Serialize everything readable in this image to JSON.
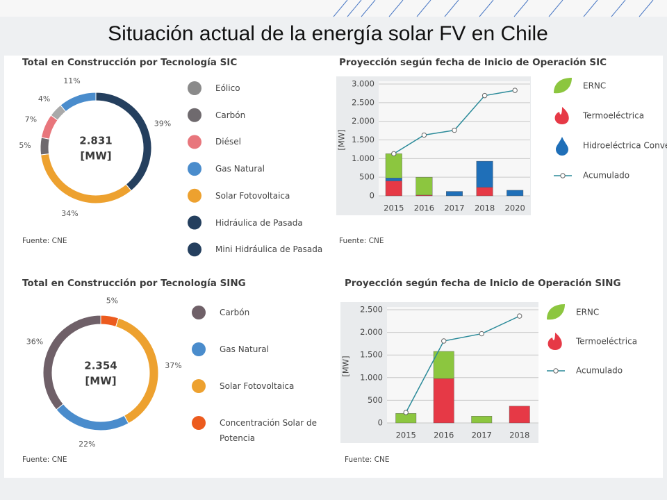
{
  "title": "Situación actual de la energía solar FV en Chile",
  "chart_data": [
    {
      "type": "donut",
      "title": "Total en Construcción por Tecnología SIC",
      "center_label": [
        "2.831",
        "[MW]"
      ],
      "values": [
        39,
        34,
        5,
        7,
        4,
        11
      ],
      "value_labels": [
        "39%",
        "34%",
        "5%",
        "7%",
        "4%",
        "11%"
      ],
      "colors": [
        "#243f5e",
        "#eda12f",
        "#6f6a6e",
        "#e8767c",
        "#a9a9a9",
        "#4a8ccc"
      ],
      "legend": [
        "Eólico",
        "Carbón",
        "Diésel",
        "Gas Natural",
        "Solar Fotovoltaica",
        "Hidráulica de Pasada",
        "Mini Hidráulica de Pasada"
      ],
      "legend_colors": [
        "#8a8a8a",
        "#6f6a6e",
        "#e8767c",
        "#4a8ccc",
        "#eda12f",
        "#243f5e",
        "#243f5e"
      ],
      "source": "Fuente: CNE"
    },
    {
      "type": "stacked_bar",
      "title": "Proyección según fecha de Inicio de Operación SIC",
      "y_label": "[MW]",
      "categories": [
        "2015",
        "2016",
        "2017",
        "2018",
        "2020"
      ],
      "series": [
        {
          "name": "ERNC",
          "color": "#8cc63f",
          "values": [
            650,
            480,
            0,
            0,
            0
          ]
        },
        {
          "name": "Termoeléctrica",
          "color": "#e63946",
          "values": [
            400,
            20,
            0,
            230,
            0
          ]
        },
        {
          "name": "Hidroeléctrica Conve",
          "color": "#1f6fb8",
          "values": [
            80,
            0,
            120,
            700,
            150
          ]
        }
      ],
      "line": {
        "name": "Acumulado",
        "color": "#2a8a99",
        "values": [
          1130,
          1630,
          1760,
          2690,
          2830
        ]
      },
      "ylim": [
        0,
        3000
      ],
      "yticks": [
        0,
        500,
        {
          "value": 1000,
          "label": "1.000"
        },
        {
          "value": 1500,
          "label": "1.500"
        },
        {
          "value": 2000,
          "label": "2.000"
        },
        {
          "value": 2500,
          "label": "2.500"
        },
        {
          "value": 3000,
          "label": "3.000"
        }
      ],
      "grid": true,
      "source": "Fuente: CNE"
    },
    {
      "type": "donut",
      "title": "Total en Construcción por Tecnología SING",
      "center_label": [
        "2.354",
        "[MW]"
      ],
      "values": [
        5,
        37,
        22,
        36
      ],
      "value_labels": [
        "5%",
        "37%",
        "22%",
        "36%"
      ],
      "colors": [
        "#ec5b1e",
        "#eda12f",
        "#4a8ccc",
        "#6f6068"
      ],
      "legend": [
        "Carbón",
        "Gas Natural",
        "Solar Fotovoltaica",
        "Concentración Solar de Potencia"
      ],
      "legend_colors": [
        "#6f6068",
        "#4a8ccc",
        "#eda12f",
        "#ec5b1e"
      ],
      "source": "Fuente: CNE"
    },
    {
      "type": "stacked_bar",
      "title": "Proyección según fecha de Inicio de Operación SING",
      "y_label": "[MW]",
      "categories": [
        "2015",
        "2016",
        "2017",
        "2018"
      ],
      "series": [
        {
          "name": "ERNC",
          "color": "#8cc63f",
          "values": [
            210,
            600,
            150,
            0
          ]
        },
        {
          "name": "Termoeléctrica",
          "color": "#e63946",
          "values": [
            0,
            980,
            0,
            370
          ]
        }
      ],
      "line": {
        "name": "Acumulado",
        "color": "#2a8a99",
        "values": [
          230,
          1810,
          1970,
          2360
        ]
      },
      "ylim": [
        0,
        2500
      ],
      "yticks": [
        0,
        500,
        {
          "value": 1000,
          "label": "1.000"
        },
        {
          "value": 1500,
          "label": "1.500"
        },
        {
          "value": 2000,
          "label": "2.000"
        },
        {
          "value": 2500,
          "label": "2.500"
        }
      ],
      "grid": true,
      "source": "Fuente: CNE"
    }
  ]
}
